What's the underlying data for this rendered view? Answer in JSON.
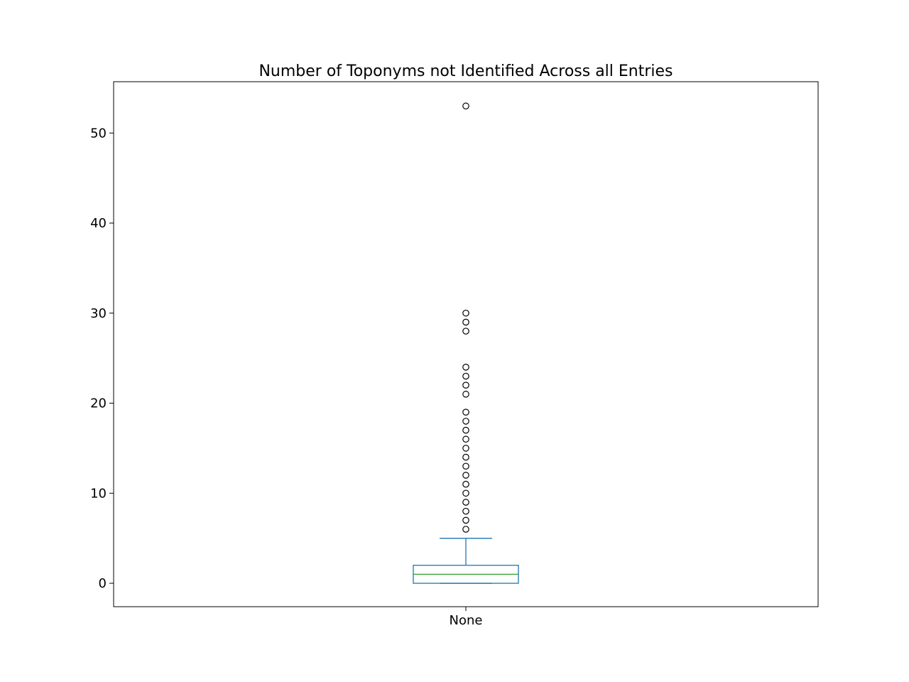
{
  "chart_data": {
    "type": "box",
    "title": "Number of Toponyms not Identified Across all Entries",
    "xlabel": "",
    "ylabel": "",
    "categories": [
      "None"
    ],
    "ylim": [
      -2.6,
      55.7
    ],
    "yticks": [
      0,
      10,
      20,
      30,
      40,
      50
    ],
    "grid": false,
    "box": {
      "min": 0,
      "q1": 0,
      "median": 1,
      "q3": 2,
      "whisker_low": 0,
      "whisker_high": 5
    },
    "outliers": [
      6,
      7,
      8,
      9,
      10,
      11,
      12,
      13,
      14,
      15,
      16,
      17,
      18,
      19,
      21,
      22,
      23,
      24,
      28,
      29,
      30,
      53
    ],
    "colors": {
      "box": "#1f77b4",
      "median": "#2ca02c",
      "outlier": "#000000"
    }
  }
}
